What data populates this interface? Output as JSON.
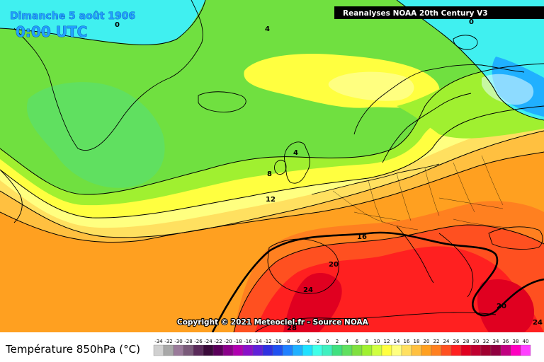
{
  "header": {
    "date_label": "Dimanche 5 août 1906",
    "time_label": "0:00 UTC",
    "source_label": "Reanalyses NOAA 20th Century V3"
  },
  "footer": {
    "copyright": "Copyright © 2021 Meteociel.fr - Source NOAA",
    "legend_title": "Température 850hPa (°C)"
  },
  "isotherm_labels": [
    {
      "id": "polar-0-west",
      "text": "0"
    },
    {
      "id": "polar-0-east",
      "text": "0"
    },
    {
      "id": "iso-4-north",
      "text": "4"
    },
    {
      "id": "iso-4-uk",
      "text": "4"
    },
    {
      "id": "iso-8",
      "text": "8"
    },
    {
      "id": "iso-12",
      "text": "12"
    },
    {
      "id": "iso-16",
      "text": "16"
    },
    {
      "id": "iso-20-iberia",
      "text": "20"
    },
    {
      "id": "iso-20-east",
      "text": "20"
    },
    {
      "id": "iso-24-iberia",
      "text": "24"
    },
    {
      "id": "iso-24-east",
      "text": "24"
    },
    {
      "id": "iso-28",
      "text": "28"
    }
  ],
  "legend": {
    "ticks": [
      "-34",
      "-32",
      "-30",
      "-28",
      "-26",
      "-24",
      "-22",
      "-20",
      "-18",
      "-16",
      "-14",
      "-12",
      "-10",
      "-8",
      "-6",
      "-4",
      "-2",
      "0",
      "2",
      "4",
      "6",
      "8",
      "10",
      "12",
      "14",
      "16",
      "18",
      "20",
      "22",
      "24",
      "26",
      "28",
      "30",
      "32",
      "34",
      "36",
      "38",
      "40"
    ],
    "colors": [
      "#d0d0d0",
      "#a8a8a8",
      "#9a7a9a",
      "#7a5a7a",
      "#5a2a5a",
      "#3a0a3a",
      "#5a005a",
      "#8a008a",
      "#b000b0",
      "#8a10c8",
      "#6020d8",
      "#3030e0",
      "#2050f0",
      "#2080ff",
      "#20b0ff",
      "#20e0ff",
      "#40ffe8",
      "#40f0c0",
      "#40e080",
      "#60e060",
      "#80e040",
      "#a0f030",
      "#d0ff40",
      "#ffff40",
      "#ffff80",
      "#ffe060",
      "#ffc040",
      "#ffa020",
      "#ff8020",
      "#ff5020",
      "#ff2020",
      "#e00020",
      "#c00030",
      "#a00030",
      "#900040",
      "#c00080",
      "#ff00c0",
      "#ff40ff"
    ]
  },
  "colors": {
    "polar_cyan": "#40f0f0",
    "cold_green": "#70e040",
    "mid_green": "#a0f030",
    "yellow": "#ffff40",
    "pale_yellow": "#ffff80",
    "warm_orange": "#ffc040",
    "hot_orange": "#ff8020",
    "hot_red": "#ff3020"
  }
}
